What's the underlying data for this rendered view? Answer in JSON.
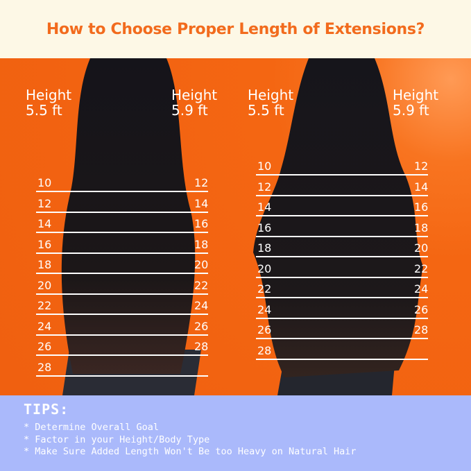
{
  "title": "How to Choose Proper Length of Extensions?",
  "colors": {
    "title": "#f26b1d",
    "banner": "#fdf8e6",
    "background": "#f56a12",
    "tips": "#aab9fb",
    "lines": "#ffffff"
  },
  "panels": [
    {
      "hair": "straight",
      "left_height": "Height\n5.5 ft",
      "right_height": "Height\n5.9 ft",
      "left_lengths": [
        "10",
        "12",
        "14",
        "16",
        "18",
        "20",
        "22",
        "24",
        "26",
        "28"
      ],
      "right_lengths": [
        "12",
        "14",
        "16",
        "18",
        "20",
        "22",
        "24",
        "26",
        "28"
      ]
    },
    {
      "hair": "wavy",
      "left_height": "Height\n5.5 ft",
      "right_height": "Height\n5.9 ft",
      "left_lengths": [
        "10",
        "12",
        "14",
        "16",
        "18",
        "20",
        "22",
        "24",
        "26",
        "28"
      ],
      "right_lengths": [
        "12",
        "14",
        "16",
        "18",
        "20",
        "22",
        "24",
        "26",
        "28"
      ]
    }
  ],
  "tips": {
    "heading": "TIPS:",
    "items": [
      "* Determine Overall Goal",
      "* Factor in your Height/Body Type",
      "* Make Sure Added Length Won't Be too Heavy on Natural Hair"
    ]
  }
}
